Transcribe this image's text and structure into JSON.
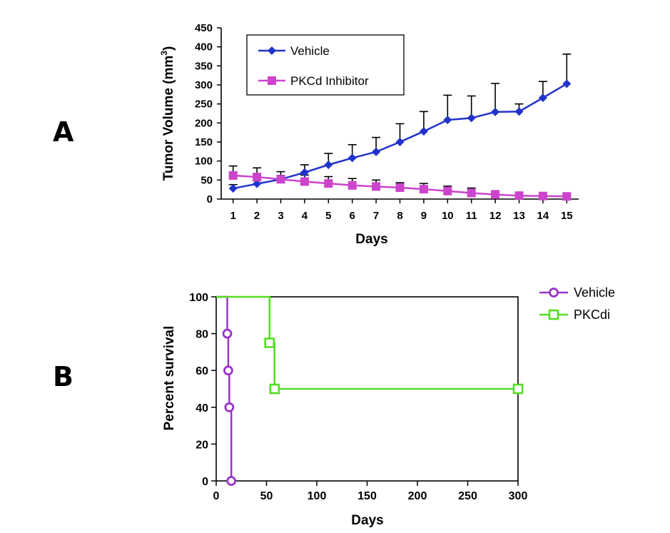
{
  "panels": {
    "a_label": "A",
    "b_label": "B"
  },
  "chart_data": [
    {
      "type": "line",
      "panel": "A",
      "title": "",
      "xlabel": "Days",
      "ylabel": "Tumor Volume (mm",
      "ylabel_sup": "3",
      "ylabel_close": ")",
      "x": [
        1,
        2,
        3,
        4,
        5,
        6,
        7,
        8,
        9,
        10,
        11,
        12,
        13,
        14,
        15
      ],
      "xlim": [
        0.5,
        15.5
      ],
      "ylim": [
        0,
        450
      ],
      "yticks": [
        0,
        50,
        100,
        150,
        200,
        250,
        300,
        350,
        400,
        450
      ],
      "grid": false,
      "legend_position": "top-left",
      "series": [
        {
          "name": "Vehicle",
          "color": "#2233cc",
          "marker": "diamond",
          "values": [
            28,
            40,
            52,
            70,
            90,
            108,
            124,
            150,
            178,
            208,
            213,
            229,
            230,
            266,
            303
          ],
          "error": [
            10,
            8,
            10,
            20,
            30,
            35,
            38,
            48,
            52,
            65,
            58,
            75,
            20,
            43,
            78
          ]
        },
        {
          "name": "PKCd Inhibitor",
          "color": "#cc44cc",
          "marker": "square",
          "values": [
            62,
            58,
            52,
            46,
            41,
            36,
            33,
            30,
            26,
            21,
            16,
            12,
            9,
            8,
            7
          ],
          "error": [
            25,
            24,
            20,
            17,
            18,
            18,
            17,
            13,
            15,
            13,
            13,
            10,
            8,
            2,
            2
          ]
        }
      ]
    },
    {
      "type": "line",
      "panel": "B",
      "title": "",
      "xlabel": "Days",
      "ylabel": "Percent survival",
      "xlim": [
        0,
        300
      ],
      "ylim": [
        0,
        100
      ],
      "xticks": [
        0,
        50,
        100,
        150,
        200,
        250,
        300
      ],
      "yticks": [
        0,
        20,
        40,
        60,
        80,
        100
      ],
      "grid": false,
      "legend_position": "right",
      "series": [
        {
          "name": "Vehicle",
          "color": "#9933cc",
          "marker": "circle",
          "step": [
            [
              0,
              100
            ],
            [
              11,
              100
            ],
            [
              11,
              80
            ],
            [
              12,
              80
            ],
            [
              12,
              60
            ],
            [
              13,
              60
            ],
            [
              13,
              40
            ],
            [
              15,
              40
            ],
            [
              15,
              0
            ]
          ],
          "points": [
            [
              11,
              80
            ],
            [
              12,
              60
            ],
            [
              13,
              40
            ],
            [
              15,
              0
            ]
          ]
        },
        {
          "name": "PKCdi",
          "color": "#55dd22",
          "marker": "square",
          "step": [
            [
              0,
              100
            ],
            [
              53,
              100
            ],
            [
              53,
              75
            ],
            [
              58,
              75
            ],
            [
              58,
              50
            ],
            [
              300,
              50
            ]
          ],
          "points": [
            [
              53,
              75
            ],
            [
              58,
              50
            ],
            [
              300,
              50
            ]
          ]
        }
      ]
    }
  ]
}
